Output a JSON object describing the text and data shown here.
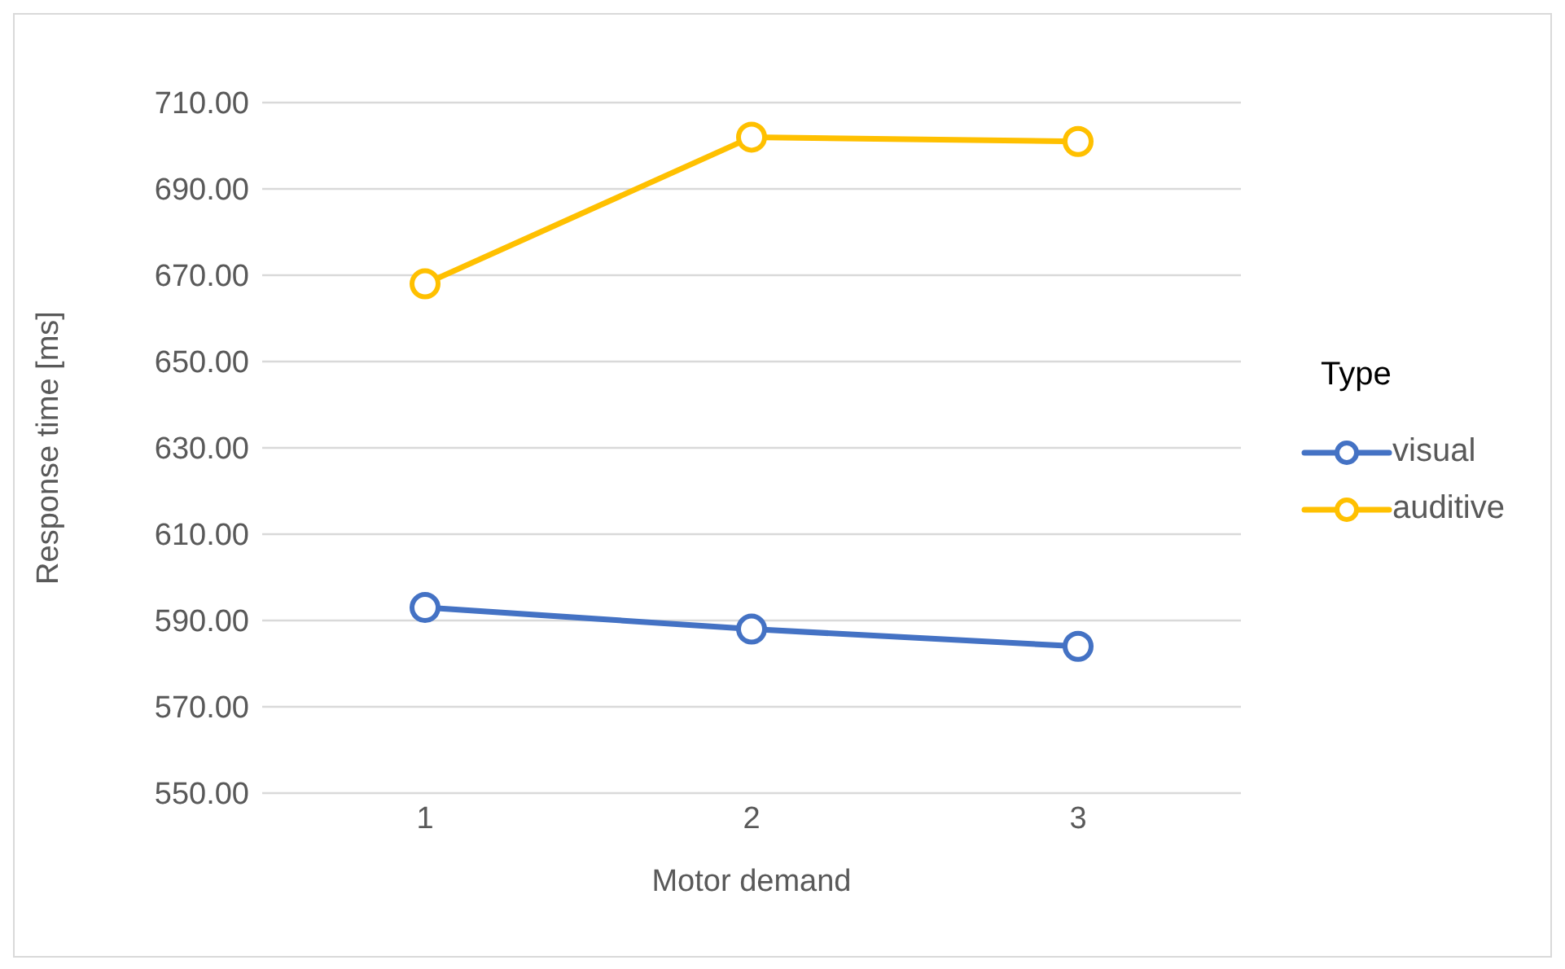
{
  "chart_data": {
    "type": "line",
    "xlabel": "Motor demand",
    "ylabel": "Response time [ms]",
    "legend_title": "Type",
    "categories": [
      "1",
      "2",
      "3"
    ],
    "series": [
      {
        "name": "visual",
        "color": "#4472c4",
        "values": [
          593,
          588,
          584
        ]
      },
      {
        "name": "auditive",
        "color": "#ffc000",
        "values": [
          668,
          702,
          701
        ]
      }
    ],
    "ylim": [
      550,
      710
    ],
    "yticks": [
      {
        "value": 550,
        "label": "550.00"
      },
      {
        "value": 570,
        "label": "570.00"
      },
      {
        "value": 590,
        "label": "590.00"
      },
      {
        "value": 610,
        "label": "610.00"
      },
      {
        "value": 630,
        "label": "630.00"
      },
      {
        "value": 650,
        "label": "650.00"
      },
      {
        "value": 670,
        "label": "670.00"
      },
      {
        "value": 690,
        "label": "690.00"
      },
      {
        "value": 710,
        "label": "710.00"
      }
    ],
    "grid": "y",
    "legend": "right",
    "marker": "circle",
    "line_style": "solid"
  }
}
